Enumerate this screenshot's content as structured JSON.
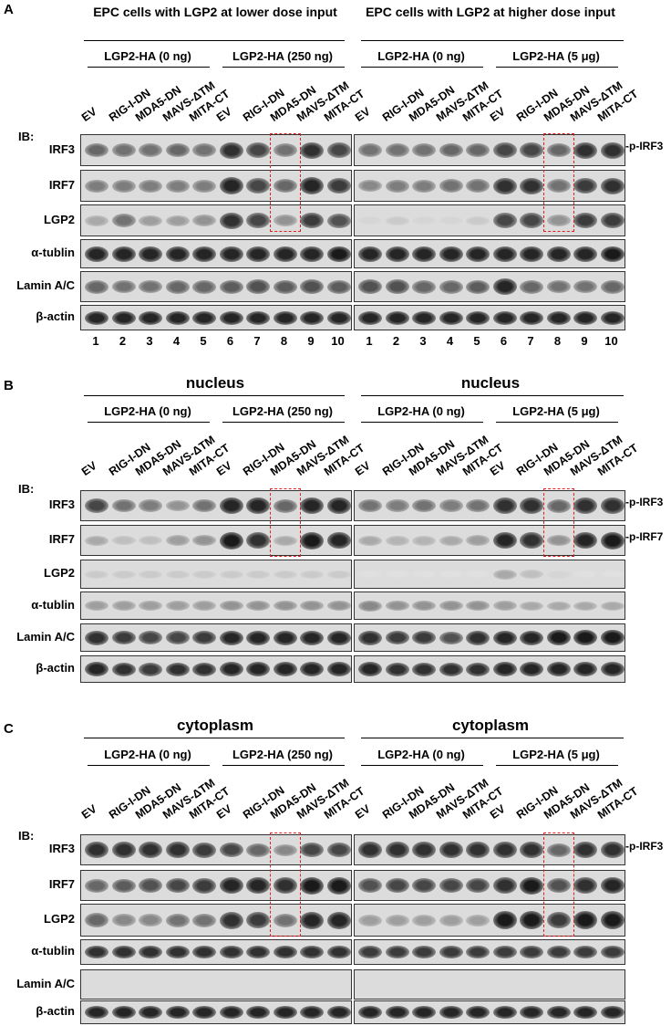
{
  "panels": [
    {
      "letter": "A",
      "left_title": "EPC cells with LGP2 at  lower dose input",
      "right_title": "EPC cells with LGP2 at higher dose input",
      "groups": [
        "LGP2-HA (0 ng)",
        "LGP2-HA (250 ng)",
        "LGP2-HA (0 ng)",
        "LGP2-HA (5 μg)"
      ],
      "lanes": [
        "EV",
        "RIG-I-DN",
        "MDA5-DN",
        "MAVS-ΔTM",
        "MITA-CT"
      ],
      "ib": "IB:",
      "rows": [
        "IRF3",
        "IRF7",
        "LGP2",
        "α-tublin",
        "Lamin A/C",
        "β-actin"
      ],
      "lane_numbers": [
        "1",
        "2",
        "3",
        "4",
        "5",
        "6",
        "7",
        "8",
        "9",
        "10"
      ],
      "markers": [
        "-p-IRF3"
      ]
    },
    {
      "letter": "B",
      "left_title": "nucleus",
      "right_title": "nucleus",
      "groups": [
        "LGP2-HA (0 ng)",
        "LGP2-HA (250 ng)",
        "LGP2-HA (0 ng)",
        "LGP2-HA (5 μg)"
      ],
      "lanes": [
        "EV",
        "RIG-I-DN",
        "MDA5-DN",
        "MAVS-ΔTM",
        "MITA-CT"
      ],
      "ib": "IB:",
      "rows": [
        "IRF3",
        "IRF7",
        "LGP2",
        "α-tublin",
        "Lamin A/C",
        "β-actin"
      ],
      "markers": [
        "-p-IRF3",
        "-p-IRF7"
      ]
    },
    {
      "letter": "C",
      "left_title": "cytoplasm",
      "right_title": "cytoplasm",
      "groups": [
        "LGP2-HA (0 ng)",
        "LGP2-HA (250 ng)",
        "LGP2-HA (0 ng)",
        "LGP2-HA (5 μg)"
      ],
      "lanes": [
        "EV",
        "RIG-I-DN",
        "MDA5-DN",
        "MAVS-ΔTM",
        "MITA-CT"
      ],
      "ib": "IB:",
      "rows": [
        "IRF3",
        "IRF7",
        "LGP2",
        "α-tublin",
        "Lamin A/C",
        "β-actin"
      ],
      "markers": [
        "-p-IRF3"
      ]
    }
  ],
  "blot_intensity": {
    "A": {
      "IRF3": [
        [
          0.6,
          0.55,
          0.55,
          0.6,
          0.55,
          0.85,
          0.75,
          0.55,
          0.85,
          0.75
        ],
        [
          0.55,
          0.55,
          0.55,
          0.6,
          0.6,
          0.75,
          0.75,
          0.6,
          0.85,
          0.85
        ]
      ],
      "IRF7": [
        [
          0.5,
          0.5,
          0.5,
          0.5,
          0.5,
          0.9,
          0.75,
          0.6,
          0.9,
          0.8
        ],
        [
          0.45,
          0.5,
          0.5,
          0.55,
          0.55,
          0.85,
          0.85,
          0.55,
          0.8,
          0.85
        ]
      ],
      "LGP2": [
        [
          0.3,
          0.55,
          0.35,
          0.35,
          0.4,
          0.85,
          0.75,
          0.4,
          0.8,
          0.7
        ],
        [
          0.1,
          0.15,
          0.1,
          0.1,
          0.15,
          0.75,
          0.75,
          0.4,
          0.8,
          0.8
        ]
      ],
      "α-tublin": [
        [
          0.9,
          0.9,
          0.9,
          0.9,
          0.9,
          0.9,
          0.9,
          0.9,
          0.9,
          0.95
        ],
        [
          0.9,
          0.9,
          0.9,
          0.9,
          0.9,
          0.9,
          0.9,
          0.9,
          0.9,
          0.95
        ]
      ],
      "Lamin A/C": [
        [
          0.6,
          0.55,
          0.55,
          0.6,
          0.6,
          0.65,
          0.7,
          0.65,
          0.7,
          0.65
        ],
        [
          0.7,
          0.7,
          0.6,
          0.6,
          0.65,
          0.9,
          0.6,
          0.55,
          0.55,
          0.6
        ]
      ],
      "β-actin": [
        [
          0.9,
          0.9,
          0.9,
          0.9,
          0.9,
          0.9,
          0.9,
          0.9,
          0.9,
          0.9
        ],
        [
          0.9,
          0.9,
          0.9,
          0.9,
          0.9,
          0.9,
          0.9,
          0.9,
          0.9,
          0.9
        ]
      ]
    },
    "B": {
      "IRF3": [
        [
          0.75,
          0.55,
          0.5,
          0.4,
          0.55,
          0.9,
          0.9,
          0.6,
          0.9,
          0.9
        ],
        [
          0.55,
          0.5,
          0.55,
          0.5,
          0.55,
          0.85,
          0.85,
          0.6,
          0.85,
          0.85
        ]
      ],
      "IRF7": [
        [
          0.3,
          0.2,
          0.2,
          0.35,
          0.4,
          0.95,
          0.85,
          0.3,
          0.95,
          0.9
        ],
        [
          0.3,
          0.25,
          0.25,
          0.3,
          0.35,
          0.9,
          0.85,
          0.4,
          0.9,
          0.95
        ]
      ],
      "LGP2": [
        [
          0.15,
          0.15,
          0.15,
          0.15,
          0.15,
          0.15,
          0.15,
          0.15,
          0.15,
          0.15
        ],
        [
          0.05,
          0.05,
          0.05,
          0.05,
          0.05,
          0.3,
          0.2,
          0.1,
          0.05,
          0.05
        ]
      ],
      "α-tublin": [
        [
          0.35,
          0.35,
          0.35,
          0.35,
          0.35,
          0.4,
          0.4,
          0.4,
          0.4,
          0.4
        ],
        [
          0.45,
          0.4,
          0.4,
          0.4,
          0.4,
          0.35,
          0.3,
          0.3,
          0.3,
          0.3
        ]
      ],
      "Lamin A/C": [
        [
          0.85,
          0.8,
          0.75,
          0.75,
          0.8,
          0.9,
          0.9,
          0.9,
          0.9,
          0.9
        ],
        [
          0.85,
          0.8,
          0.8,
          0.7,
          0.85,
          0.9,
          0.9,
          0.95,
          0.95,
          0.95
        ]
      ],
      "β-actin": [
        [
          0.9,
          0.85,
          0.8,
          0.85,
          0.85,
          0.9,
          0.9,
          0.9,
          0.9,
          0.9
        ],
        [
          0.9,
          0.85,
          0.85,
          0.85,
          0.85,
          0.9,
          0.9,
          0.9,
          0.9,
          0.9
        ]
      ]
    },
    "C": {
      "IRF3": [
        [
          0.85,
          0.85,
          0.85,
          0.85,
          0.8,
          0.75,
          0.6,
          0.45,
          0.75,
          0.75
        ],
        [
          0.85,
          0.85,
          0.85,
          0.85,
          0.85,
          0.85,
          0.85,
          0.6,
          0.85,
          0.85
        ]
      ],
      "IRF7": [
        [
          0.6,
          0.65,
          0.7,
          0.75,
          0.8,
          0.9,
          0.9,
          0.85,
          0.95,
          0.95
        ],
        [
          0.7,
          0.75,
          0.75,
          0.75,
          0.75,
          0.85,
          0.95,
          0.7,
          0.85,
          0.9
        ]
      ],
      "LGP2": [
        [
          0.6,
          0.45,
          0.45,
          0.55,
          0.55,
          0.85,
          0.8,
          0.55,
          0.9,
          0.9
        ],
        [
          0.35,
          0.35,
          0.35,
          0.35,
          0.35,
          0.95,
          0.95,
          0.8,
          0.95,
          0.95
        ]
      ],
      "α-tublin": [
        [
          0.85,
          0.85,
          0.85,
          0.85,
          0.85,
          0.85,
          0.85,
          0.85,
          0.85,
          0.85
        ],
        [
          0.8,
          0.8,
          0.8,
          0.8,
          0.8,
          0.8,
          0.8,
          0.8,
          0.8,
          0.8
        ]
      ],
      "Lamin A/C": [
        [
          0,
          0,
          0,
          0,
          0,
          0,
          0,
          0,
          0,
          0
        ],
        [
          0,
          0,
          0,
          0,
          0,
          0,
          0,
          0,
          0,
          0
        ]
      ],
      "β-actin": [
        [
          0.9,
          0.9,
          0.9,
          0.9,
          0.9,
          0.9,
          0.9,
          0.9,
          0.9,
          0.9
        ],
        [
          0.9,
          0.9,
          0.9,
          0.9,
          0.9,
          0.9,
          0.9,
          0.9,
          0.9,
          0.9
        ]
      ]
    }
  }
}
